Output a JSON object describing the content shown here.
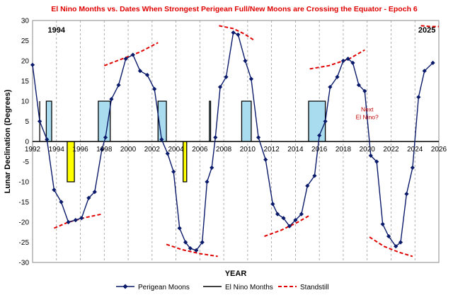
{
  "chart_data": {
    "type": "line",
    "title": "El Nino Months vs. Dates When Strongest Perigean Full/New Moons are Crossing the Equator - Epoch 6",
    "xlabel": "YEAR",
    "ylabel": "Lunar Declination (Degrees)",
    "xlim": [
      1992,
      2026
    ],
    "ylim": [
      -30,
      30
    ],
    "x_ticks": [
      1992,
      1994,
      1996,
      1998,
      2000,
      2002,
      2004,
      2006,
      2008,
      2010,
      2012,
      2014,
      2016,
      2018,
      2020,
      2022,
      2024,
      2026
    ],
    "y_ticks": [
      -30,
      -25,
      -20,
      -15,
      -10,
      -5,
      0,
      5,
      10,
      15,
      20,
      25,
      30
    ],
    "grid": "vertical dashed",
    "legend_position": "bottom",
    "colors": {
      "title": "#e00000",
      "perigean": "#0a1a6a",
      "standstill": "#e00000",
      "elnino_pos_fill": "#a9dcef",
      "elnino_neg_fill": "#ffff00"
    },
    "series": [
      {
        "name": "Perigean Moons",
        "style": "line-markers",
        "points": [
          [
            1992.0,
            19
          ],
          [
            1992.6,
            5
          ],
          [
            1993.2,
            0.5
          ],
          [
            1993.8,
            -12
          ],
          [
            1994.4,
            -15
          ],
          [
            1995.0,
            -20
          ],
          [
            1995.6,
            -19.5
          ],
          [
            1996.1,
            -19
          ],
          [
            1996.7,
            -14
          ],
          [
            1997.2,
            -12.5
          ],
          [
            1997.8,
            -2
          ],
          [
            1998.1,
            1
          ],
          [
            1998.6,
            10.5
          ],
          [
            1999.2,
            14
          ],
          [
            1999.8,
            20.5
          ],
          [
            2000.4,
            21.5
          ],
          [
            2001.0,
            17.5
          ],
          [
            2001.6,
            16.5
          ],
          [
            2002.2,
            13
          ],
          [
            2002.8,
            0.5
          ],
          [
            2003.3,
            -3
          ],
          [
            2003.8,
            -7.5
          ],
          [
            2004.3,
            -21.5
          ],
          [
            2004.8,
            -25
          ],
          [
            2005.2,
            -26.5
          ],
          [
            2005.7,
            -27
          ],
          [
            2006.2,
            -25
          ],
          [
            2006.6,
            -10
          ],
          [
            2007.0,
            -6.5
          ],
          [
            2007.3,
            1
          ],
          [
            2007.7,
            13.5
          ],
          [
            2008.2,
            16
          ],
          [
            2008.8,
            27
          ],
          [
            2009.2,
            26.5
          ],
          [
            2009.8,
            20
          ],
          [
            2010.3,
            15.5
          ],
          [
            2010.9,
            1
          ],
          [
            2011.5,
            -4.5
          ],
          [
            2012.1,
            -15.5
          ],
          [
            2012.5,
            -18
          ],
          [
            2013.0,
            -19
          ],
          [
            2013.5,
            -21
          ],
          [
            2014.0,
            -19.5
          ],
          [
            2014.5,
            -18
          ],
          [
            2015.0,
            -11
          ],
          [
            2015.6,
            -8.5
          ],
          [
            2016.0,
            1.5
          ],
          [
            2016.5,
            5
          ],
          [
            2016.9,
            13.5
          ],
          [
            2017.5,
            16
          ],
          [
            2018.0,
            20
          ],
          [
            2018.4,
            20.5
          ],
          [
            2018.8,
            19.5
          ],
          [
            2019.3,
            14
          ],
          [
            2019.8,
            12.5
          ],
          [
            2020.3,
            -3.5
          ],
          [
            2020.8,
            -5
          ],
          [
            2021.3,
            -20.5
          ],
          [
            2021.8,
            -23.5
          ],
          [
            2022.4,
            -26
          ],
          [
            2022.8,
            -25
          ],
          [
            2023.3,
            -13
          ],
          [
            2023.8,
            -6.5
          ],
          [
            2024.3,
            11
          ],
          [
            2024.8,
            17.5
          ],
          [
            2025.5,
            19.5
          ]
        ]
      },
      {
        "name": "El Nino Months",
        "style": "step-filled",
        "blocks": [
          {
            "start": 1992.6,
            "end": 1992.6,
            "value": 10
          },
          {
            "start": 1993.15,
            "end": 1993.6,
            "value": 10
          },
          {
            "start": 1994.9,
            "end": 1995.5,
            "value": -10
          },
          {
            "start": 1997.5,
            "end": 1998.5,
            "value": 10
          },
          {
            "start": 2002.5,
            "end": 2003.2,
            "value": 10
          },
          {
            "start": 2004.6,
            "end": 2004.9,
            "value": -10
          },
          {
            "start": 2006.8,
            "end": 2006.9,
            "value": 10
          },
          {
            "start": 2009.5,
            "end": 2010.3,
            "value": 10
          },
          {
            "start": 2015.1,
            "end": 2016.5,
            "value": 10
          }
        ]
      },
      {
        "name": "Standstill",
        "style": "dashed",
        "segments": [
          {
            "x": [
              1993.8,
              1995.0,
              1996.5,
              1997.8
            ],
            "y": [
              -21.5,
              -20,
              -18.8,
              -18
            ]
          },
          {
            "x": [
              1998.0,
              1999.5,
              2001.0,
              2002.5
            ],
            "y": [
              18.8,
              20.5,
              22.2,
              24.5
            ]
          },
          {
            "x": [
              2003.2,
              2004.5,
              2006.0,
              2007.5
            ],
            "y": [
              -25.5,
              -26.8,
              -27.8,
              -28.5
            ]
          },
          {
            "x": [
              2007.6,
              2008.8,
              2009.7,
              2010.6
            ],
            "y": [
              28.7,
              28,
              26.7,
              25
            ]
          },
          {
            "x": [
              2011.4,
              2012.8,
              2014.2,
              2015.2
            ],
            "y": [
              -23.5,
              -22,
              -20,
              -18.3
            ]
          },
          {
            "x": [
              2015.2,
              2016.8,
              2018.5,
              2019.8
            ],
            "y": [
              18,
              18.8,
              20.5,
              22.7
            ]
          },
          {
            "x": [
              2020.2,
              2021.4,
              2022.7,
              2023.8
            ],
            "y": [
              -23.7,
              -26,
              -27.5,
              -28.5
            ]
          },
          {
            "x": [
              2024.5,
              2025.3,
              2026.0
            ],
            "y": [
              28.7,
              28.5,
              28.5
            ]
          }
        ]
      }
    ],
    "annotations": [
      {
        "text": "1994",
        "x": 1994,
        "y": 27,
        "kind": "year"
      },
      {
        "text": "2025",
        "x": 2025,
        "y": 27,
        "kind": "year"
      },
      {
        "text": "Next",
        "x": 2020,
        "y": 7.5,
        "kind": "note"
      },
      {
        "text": "El Nino?",
        "x": 2020,
        "y": 5.5,
        "kind": "note"
      }
    ]
  }
}
